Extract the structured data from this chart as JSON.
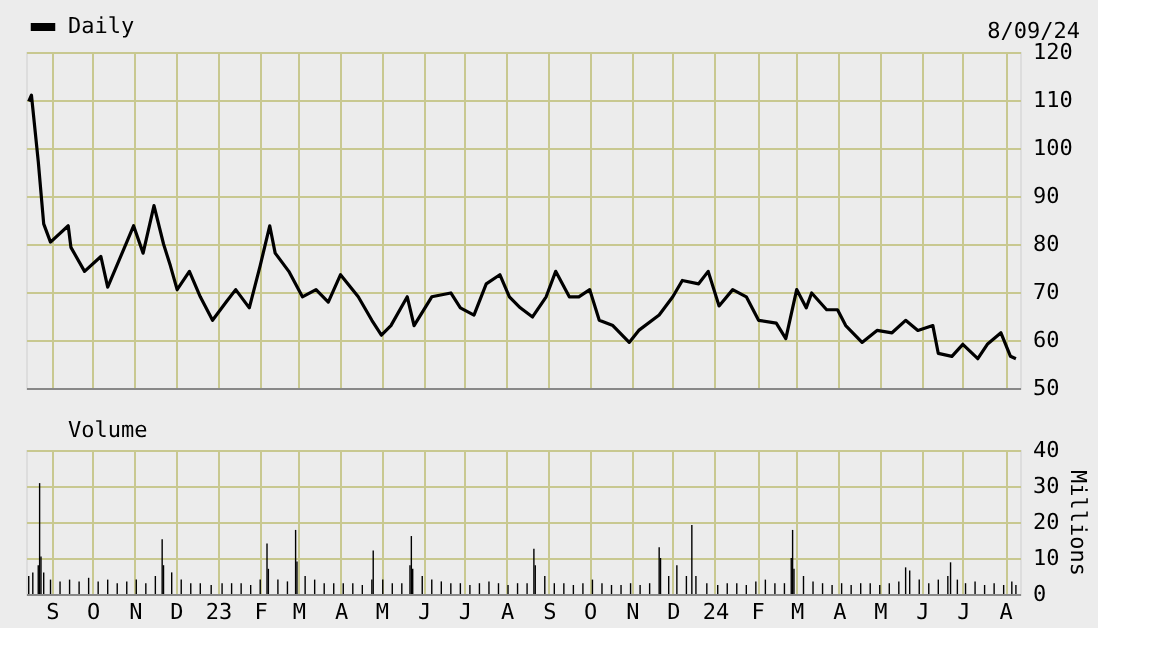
{
  "chart_data": [
    {
      "type": "line",
      "annotations": [
        "8/09/24"
      ],
      "legend": "top left",
      "grid": true,
      "tick_labels": "y",
      "marker": "none",
      "line_style": "solid",
      "xlim": [
        "2022-08-13",
        "2024-08-12"
      ],
      "ylim": [
        50,
        120
      ],
      "yticks": [
        50,
        60,
        70,
        80,
        90,
        100,
        110,
        120
      ],
      "xticks": [
        {
          "value": "2022-09-01",
          "label": null
        },
        {
          "value": "2022-10-01",
          "label": null
        },
        {
          "value": "2022-11-01",
          "label": null
        },
        {
          "value": "2022-12-01",
          "label": null
        },
        {
          "value": "2023-01-01",
          "label": null
        },
        {
          "value": "2023-02-01",
          "label": null
        },
        {
          "value": "2023-03-01",
          "label": null
        },
        {
          "value": "2023-04-01",
          "label": null
        },
        {
          "value": "2023-05-01",
          "label": null
        },
        {
          "value": "2023-06-01",
          "label": null
        },
        {
          "value": "2023-07-01",
          "label": null
        },
        {
          "value": "2023-08-01",
          "label": null
        },
        {
          "value": "2023-09-01",
          "label": null
        },
        {
          "value": "2023-10-01",
          "label": null
        },
        {
          "value": "2023-11-01",
          "label": null
        },
        {
          "value": "2023-12-01",
          "label": null
        },
        {
          "value": "2024-01-01",
          "label": null
        },
        {
          "value": "2024-02-01",
          "label": null
        },
        {
          "value": "2024-03-01",
          "label": null
        },
        {
          "value": "2024-04-01",
          "label": null
        },
        {
          "value": "2024-05-01",
          "label": null
        },
        {
          "value": "2024-06-01",
          "label": null
        },
        {
          "value": "2024-07-01",
          "label": null
        },
        {
          "value": "2024-08-01",
          "label": null
        }
      ],
      "series": [
        {
          "name": "Daily",
          "color": "#000000",
          "x": [
            "2022-08-15",
            "2022-08-17",
            "2022-08-22",
            "2022-08-26",
            "2022-08-31",
            "2022-09-13",
            "2022-09-15",
            "2022-09-25",
            "2022-10-07",
            "2022-10-12",
            "2022-10-26",
            "2022-10-31",
            "2022-11-07",
            "2022-11-15",
            "2022-11-22",
            "2022-11-27",
            "2022-12-02",
            "2022-12-11",
            "2022-12-19",
            "2022-12-28",
            "2023-01-07",
            "2023-01-14",
            "2023-01-24",
            "2023-02-01",
            "2023-02-08",
            "2023-02-12",
            "2023-02-22",
            "2023-03-04",
            "2023-03-14",
            "2023-03-23",
            "2023-04-01",
            "2023-04-14",
            "2023-04-24",
            "2023-05-01",
            "2023-05-08",
            "2023-05-20",
            "2023-05-25",
            "2023-06-07",
            "2023-06-21",
            "2023-06-28",
            "2023-07-08",
            "2023-07-17",
            "2023-07-27",
            "2023-08-03",
            "2023-08-11",
            "2023-08-20",
            "2023-08-30",
            "2023-09-06",
            "2023-09-16",
            "2023-09-23",
            "2023-10-01",
            "2023-10-08",
            "2023-10-18",
            "2023-10-30",
            "2023-11-06",
            "2023-11-21",
            "2023-12-01",
            "2023-12-08",
            "2023-12-20",
            "2023-12-27",
            "2024-01-04",
            "2024-01-14",
            "2024-01-24",
            "2024-02-02",
            "2024-02-15",
            "2024-02-22",
            "2024-03-01",
            "2024-03-08",
            "2024-03-12",
            "2024-03-23",
            "2024-03-31",
            "2024-04-06",
            "2024-04-18",
            "2024-04-29",
            "2024-05-10",
            "2024-05-20",
            "2024-05-29",
            "2024-06-09",
            "2024-06-13",
            "2024-06-23",
            "2024-07-01",
            "2024-07-12",
            "2024-07-19",
            "2024-07-29",
            "2024-08-05",
            "2024-08-09"
          ],
          "values": [
            109.7,
            111,
            97.2,
            84.2,
            80.4,
            83.8,
            79.3,
            74.3,
            77.4,
            71,
            80.4,
            83.8,
            78.1,
            88,
            80,
            75.5,
            70.5,
            74.3,
            69,
            64.1,
            67.9,
            70.5,
            66.7,
            75.5,
            83.8,
            78.1,
            74.3,
            69,
            70.5,
            67.9,
            73.6,
            69,
            64.1,
            61,
            63,
            69,
            63,
            69,
            69.8,
            66.7,
            65.2,
            71.7,
            73.6,
            69,
            66.7,
            64.8,
            69,
            74.3,
            69,
            69,
            70.5,
            64.1,
            63,
            59.5,
            62,
            65.2,
            69,
            72.4,
            71.7,
            74.3,
            67.1,
            70.5,
            69,
            64.1,
            63.5,
            60.3,
            70.5,
            66.7,
            69.8,
            66.3,
            66.3,
            63,
            59.5,
            62,
            61.5,
            64.1,
            62,
            63,
            57.2,
            56.6,
            59.1,
            56.1,
            59.1,
            61.5,
            56.6,
            56.1
          ]
        }
      ]
    },
    {
      "type": "bar",
      "ylabel": "Millions",
      "legend": "top left",
      "grid": true,
      "xlim": [
        "2022-08-13",
        "2024-08-12"
      ],
      "ylim": [
        0,
        40
      ],
      "yticks": [
        0,
        10,
        20,
        30,
        40
      ],
      "xticks": [
        {
          "value": "2022-09-01",
          "label": "S"
        },
        {
          "value": "2022-10-01",
          "label": "O"
        },
        {
          "value": "2022-11-01",
          "label": "N"
        },
        {
          "value": "2022-12-01",
          "label": "D"
        },
        {
          "value": "2023-01-01",
          "label": "23"
        },
        {
          "value": "2023-02-01",
          "label": "F"
        },
        {
          "value": "2023-03-01",
          "label": "M"
        },
        {
          "value": "2023-04-01",
          "label": "A"
        },
        {
          "value": "2023-05-01",
          "label": "M"
        },
        {
          "value": "2023-06-01",
          "label": "J"
        },
        {
          "value": "2023-07-01",
          "label": "J"
        },
        {
          "value": "2023-08-01",
          "label": "A"
        },
        {
          "value": "2023-09-01",
          "label": "S"
        },
        {
          "value": "2023-10-01",
          "label": "O"
        },
        {
          "value": "2023-11-01",
          "label": "N"
        },
        {
          "value": "2023-12-01",
          "label": "D"
        },
        {
          "value": "2024-01-01",
          "label": "24"
        },
        {
          "value": "2024-02-01",
          "label": "F"
        },
        {
          "value": "2024-03-01",
          "label": "M"
        },
        {
          "value": "2024-04-01",
          "label": "A"
        },
        {
          "value": "2024-05-01",
          "label": "M"
        },
        {
          "value": "2024-06-01",
          "label": "J"
        },
        {
          "value": "2024-07-01",
          "label": "J"
        },
        {
          "value": "2024-08-01",
          "label": "A"
        }
      ],
      "series": [
        {
          "name": "Volume",
          "color": "#000000",
          "x": [
            "2022-08-15",
            "2022-08-18",
            "2022-08-22",
            "2022-08-23",
            "2022-08-24",
            "2022-08-26",
            "2022-08-31",
            "2022-09-07",
            "2022-09-14",
            "2022-09-21",
            "2022-09-28",
            "2022-10-05",
            "2022-10-12",
            "2022-10-19",
            "2022-10-26",
            "2022-11-02",
            "2022-11-09",
            "2022-11-16",
            "2022-11-21",
            "2022-11-22",
            "2022-11-28",
            "2022-12-05",
            "2022-12-12",
            "2022-12-19",
            "2022-12-27",
            "2023-01-04",
            "2023-01-11",
            "2023-01-18",
            "2023-01-25",
            "2023-02-01",
            "2023-02-06",
            "2023-02-07",
            "2023-02-14",
            "2023-02-21",
            "2023-02-27",
            "2023-02-28",
            "2023-03-06",
            "2023-03-13",
            "2023-03-20",
            "2023-03-27",
            "2023-04-03",
            "2023-04-10",
            "2023-04-17",
            "2023-04-24",
            "2023-04-25",
            "2023-05-02",
            "2023-05-09",
            "2023-05-16",
            "2023-05-22",
            "2023-05-23",
            "2023-05-24",
            "2023-05-31",
            "2023-06-07",
            "2023-06-14",
            "2023-06-21",
            "2023-06-28",
            "2023-07-05",
            "2023-07-12",
            "2023-07-19",
            "2023-07-26",
            "2023-08-02",
            "2023-08-09",
            "2023-08-16",
            "2023-08-21",
            "2023-08-22",
            "2023-08-29",
            "2023-09-05",
            "2023-09-12",
            "2023-09-19",
            "2023-09-26",
            "2023-10-03",
            "2023-10-10",
            "2023-10-17",
            "2023-10-24",
            "2023-10-31",
            "2023-11-07",
            "2023-11-14",
            "2023-11-21",
            "2023-11-22",
            "2023-11-28",
            "2023-12-04",
            "2023-12-11",
            "2023-12-15",
            "2023-12-18",
            "2023-12-26",
            "2024-01-03",
            "2024-01-10",
            "2024-01-17",
            "2024-01-24",
            "2024-01-31",
            "2024-02-07",
            "2024-02-14",
            "2024-02-21",
            "2024-02-26",
            "2024-02-27",
            "2024-02-28",
            "2024-03-06",
            "2024-03-13",
            "2024-03-20",
            "2024-03-27",
            "2024-04-03",
            "2024-04-10",
            "2024-04-17",
            "2024-04-24",
            "2024-05-01",
            "2024-05-08",
            "2024-05-15",
            "2024-05-20",
            "2024-05-23",
            "2024-05-30",
            "2024-06-06",
            "2024-06-13",
            "2024-06-20",
            "2024-06-22",
            "2024-06-27",
            "2024-07-03",
            "2024-07-10",
            "2024-07-17",
            "2024-07-24",
            "2024-07-31",
            "2024-08-06",
            "2024-08-09"
          ],
          "values": [
            5,
            6,
            8,
            30.8,
            10.4,
            6,
            4,
            3.5,
            4,
            3.5,
            4.5,
            3.5,
            4,
            3,
            3.5,
            4,
            3,
            5,
            15.2,
            8,
            6,
            4,
            3,
            3,
            2.5,
            3,
            3,
            3,
            2.5,
            4,
            14,
            7,
            4,
            3.5,
            17.8,
            9,
            5,
            4,
            3,
            3,
            3,
            3,
            2.5,
            4,
            12.1,
            4,
            3,
            3,
            8,
            16.1,
            7,
            5,
            4,
            3.5,
            3,
            3,
            2.5,
            3,
            3.5,
            3,
            2.5,
            3,
            3,
            12.6,
            8,
            5,
            3,
            3,
            2.5,
            3,
            4,
            3,
            2.5,
            2.5,
            3,
            2.5,
            3,
            13,
            10,
            5,
            8,
            5,
            19.2,
            5,
            3,
            2.5,
            3,
            3,
            2.5,
            3.5,
            4,
            3,
            3,
            10,
            17.8,
            7,
            5,
            3.5,
            3,
            2.5,
            3,
            2.5,
            3,
            3,
            2.5,
            3,
            3.5,
            7.4,
            6.5,
            4,
            3,
            4,
            5,
            8.8,
            4,
            3,
            3.5,
            2.5,
            3,
            2.5,
            3.5,
            2.5
          ]
        }
      ]
    }
  ]
}
